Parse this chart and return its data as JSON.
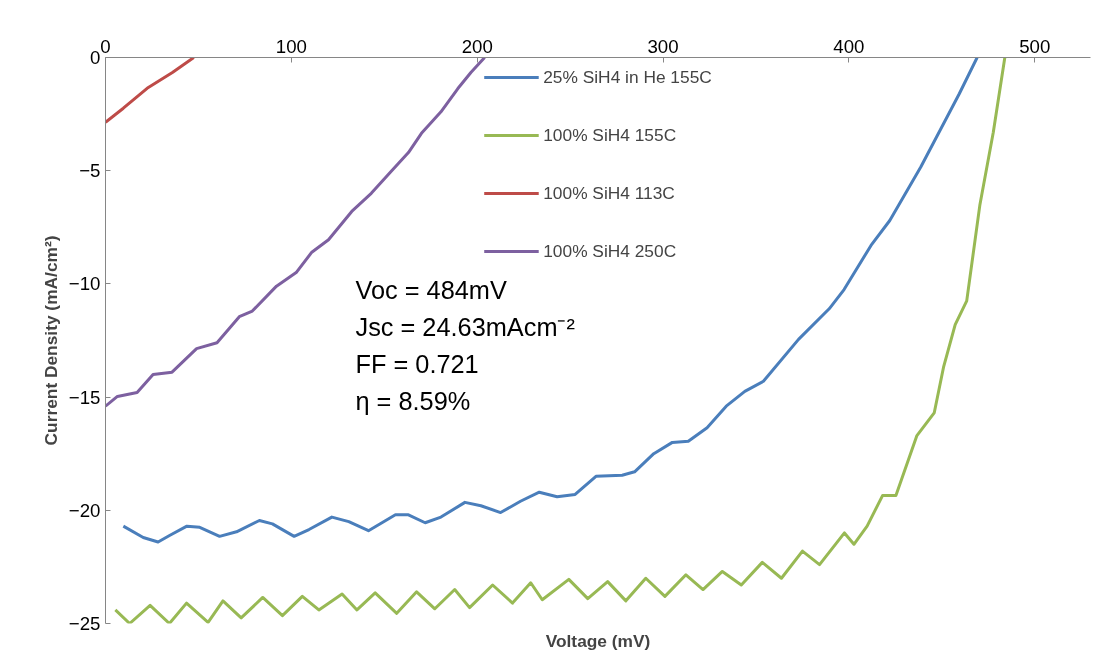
{
  "chart_data": {
    "type": "line",
    "xlabel": "Voltage (mV)",
    "ylabel": "Current Density (mA/cm²)",
    "xlim": [
      0,
      530
    ],
    "xticks": [
      0,
      100,
      200,
      300,
      400,
      500
    ],
    "ylim": [
      -25,
      0
    ],
    "yticks": [
      -25,
      -20,
      -15,
      -10,
      -5,
      0
    ],
    "grid": false,
    "legend": "top",
    "marker": "none",
    "line_style": "solid",
    "annotations": [
      "Voc = 484mV",
      "Jsc = 24.63mAcm⁻²",
      "FF = 0.721",
      "η = 8.59%"
    ],
    "series": [
      {
        "name": "25% SiH4 in He 155C",
        "color": "#4a7ebb",
        "x": [
          9.6,
          20.3,
          28.3,
          34.7,
          43.8,
          50.7,
          61.4,
          70.5,
          82.8,
          89.8,
          101.5,
          109.5,
          121.8,
          130.9,
          141.5,
          156,
          163,
          172,
          180.5,
          193.4,
          202,
          212.6,
          223.3,
          233.4,
          243,
          252.7,
          263.9,
          278,
          284.7,
          295,
          305,
          313.6,
          323.7,
          334,
          344,
          354,
          372.9,
          389.4,
          397.4,
          411.9,
          422,
          438.6,
          459.4,
          469
        ],
        "values": [
          -20.7,
          -21.2,
          -21.4,
          -21.1,
          -20.7,
          -20.75,
          -21.15,
          -20.95,
          -20.45,
          -20.6,
          -21.15,
          -20.85,
          -20.3,
          -20.5,
          -20.9,
          -20.2,
          -20.2,
          -20.55,
          -20.3,
          -19.65,
          -19.8,
          -20.1,
          -19.6,
          -19.2,
          -19.4,
          -19.3,
          -18.5,
          -18.45,
          -18.3,
          -17.5,
          -17.0,
          -16.95,
          -16.35,
          -15.4,
          -14.75,
          -14.3,
          -12.45,
          -11.1,
          -10.25,
          -8.3,
          -7.2,
          -4.85,
          -1.6,
          0
        ]
      },
      {
        "name": "100% SiH4 155C",
        "color": "#98b954",
        "x": [
          5.3,
          13,
          24,
          34.4,
          43.6,
          55.2,
          63.2,
          73,
          84.6,
          95.2,
          105.9,
          114.8,
          127.3,
          135.3,
          145.1,
          156.7,
          167.4,
          177.2,
          187.9,
          195.9,
          208.3,
          219,
          228.8,
          235,
          249.3,
          259.5,
          270.2,
          280,
          290.7,
          301,
          312.3,
          321.5,
          331.9,
          342.1,
          353.4,
          363.7,
          375,
          384.2,
          397.6,
          402.7,
          409.8,
          418.1,
          425.3,
          436.6,
          445.9,
          451,
          457.2,
          463.4,
          470.5,
          477.7,
          483.9
        ],
        "values": [
          -24.4,
          -25,
          -24.2,
          -25,
          -24.1,
          -24.95,
          -24.0,
          -24.75,
          -23.85,
          -24.65,
          -23.8,
          -24.4,
          -23.7,
          -24.4,
          -23.65,
          -24.55,
          -23.6,
          -24.35,
          -23.5,
          -24.3,
          -23.3,
          -24.1,
          -23.2,
          -23.95,
          -23.05,
          -23.9,
          -23.15,
          -24.0,
          -23.0,
          -23.8,
          -22.85,
          -23.5,
          -22.7,
          -23.3,
          -22.3,
          -23.0,
          -21.8,
          -22.4,
          -21.0,
          -21.5,
          -20.7,
          -19.35,
          -19.35,
          -16.7,
          -15.7,
          -13.65,
          -11.8,
          -10.75,
          -6.5,
          -3.3,
          0
        ]
      },
      {
        "name": "100% SiH4 113C",
        "color": "#be4b48",
        "x": [
          0,
          9.6,
          22.4,
          36,
          47.5
        ],
        "values": [
          -2.86,
          -2.24,
          -1.36,
          -0.66,
          0
        ]
      },
      {
        "name": "100% SiH4 250C",
        "color": "#7d60a0",
        "x": [
          0,
          6.4,
          17,
          25.6,
          35.8,
          49,
          60,
          72,
          79,
          92,
          102.6,
          111,
          120,
          132.5,
          143,
          154,
          163,
          170,
          180.5,
          189.6,
          196.6,
          204
        ],
        "values": [
          -15.4,
          -14.97,
          -14.8,
          -14.0,
          -13.9,
          -12.86,
          -12.6,
          -11.45,
          -11.2,
          -10.1,
          -9.5,
          -8.6,
          -8.05,
          -6.8,
          -6.0,
          -5.0,
          -4.2,
          -3.35,
          -2.4,
          -1.37,
          -0.66,
          0
        ]
      }
    ]
  }
}
